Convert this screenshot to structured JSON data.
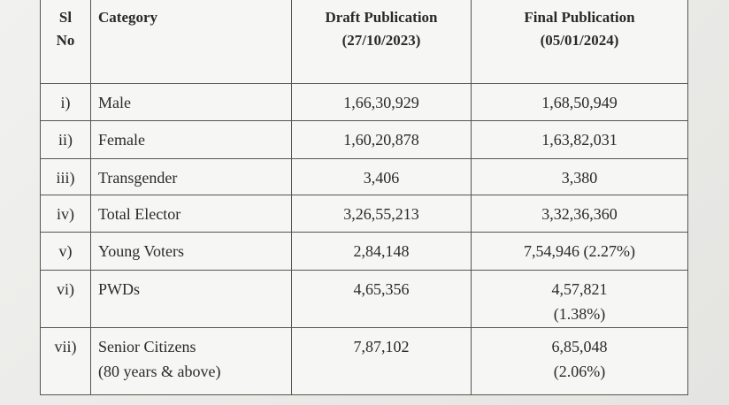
{
  "table": {
    "header": [
      [
        "Sl",
        "No"
      ],
      "Category",
      [
        "Draft Publication",
        "(27/10/2023)"
      ],
      [
        "Final Publication",
        "(05/01/2024)"
      ]
    ],
    "rows": [
      [
        "i)",
        "Male",
        "1,66,30,929",
        "1,68,50,949"
      ],
      [
        "ii)",
        "Female",
        "1,60,20,878",
        "1,63,82,031"
      ],
      [
        "iii)",
        "Transgender",
        "3,406",
        "3,380"
      ],
      [
        "iv)",
        "Total Elector",
        "3,26,55,213",
        "3,32,36,360"
      ],
      [
        "v)",
        "Young Voters",
        "2,84,148",
        "7,54,946 (2.27%)"
      ],
      [
        "vi)",
        "PWDs",
        "4,65,356",
        [
          "4,57,821",
          "(1.38%)"
        ]
      ],
      [
        "vii)",
        [
          "Senior Citizens",
          "(80 years & above)"
        ],
        "7,87,102",
        [
          "6,85,048",
          "(2.06%)"
        ]
      ]
    ]
  }
}
